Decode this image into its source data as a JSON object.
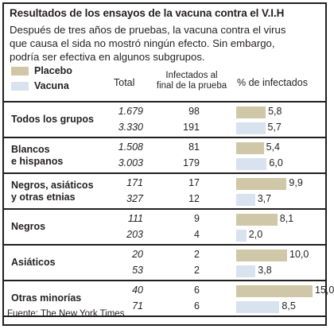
{
  "title": "Resultados de los ensayos de la vacuna contra el V.I.H",
  "subtitle_lines": [
    "Después de tres años de pruebas, la vacuna contra el virus",
    "que causa el sida no mostró ningún efecto. Sin embargo,",
    "podría ser efectiva en algunos subgrupos."
  ],
  "legend": [
    {
      "name": "Placebo",
      "color": "#cfc7a7"
    },
    {
      "name": "Vacuna",
      "color": "#d9e2ef"
    }
  ],
  "columns": {
    "total": "Total",
    "infected_line1": "Infectados al",
    "infected_line2": "final de la prueba",
    "percent": "% de infectados"
  },
  "source": "Fuente: The New York Times",
  "chart_data": {
    "type": "bar",
    "title": "Resultados de los ensayos de la vacuna contra el V.I.H",
    "series_names": [
      "Placebo",
      "Vacuna"
    ],
    "groups": [
      {
        "label_lines": [
          "Todos los grupos"
        ],
        "rows": [
          {
            "series": "Placebo",
            "total": "1.679",
            "infected": "98",
            "percent": 5.8,
            "percent_label": "5,8"
          },
          {
            "series": "Vacuna",
            "total": "3.330",
            "infected": "191",
            "percent": 5.7,
            "percent_label": "5,7"
          }
        ]
      },
      {
        "label_lines": [
          "Blancos",
          "e hispanos"
        ],
        "rows": [
          {
            "series": "Placebo",
            "total": "1.508",
            "infected": "81",
            "percent": 5.4,
            "percent_label": "5,4"
          },
          {
            "series": "Vacuna",
            "total": "3.003",
            "infected": "179",
            "percent": 6.0,
            "percent_label": "6,0"
          }
        ]
      },
      {
        "label_lines": [
          "Negros, asiáticos",
          "y otras etnias"
        ],
        "rows": [
          {
            "series": "Placebo",
            "total": "171",
            "infected": "17",
            "percent": 9.9,
            "percent_label": "9,9"
          },
          {
            "series": "Vacuna",
            "total": "327",
            "infected": "12",
            "percent": 3.7,
            "percent_label": "3,7"
          }
        ]
      },
      {
        "label_lines": [
          "Negros"
        ],
        "rows": [
          {
            "series": "Placebo",
            "total": "111",
            "infected": "9",
            "percent": 8.1,
            "percent_label": "8,1"
          },
          {
            "series": "Vacuna",
            "total": "203",
            "infected": "4",
            "percent": 2.0,
            "percent_label": "2,0"
          }
        ]
      },
      {
        "label_lines": [
          "Asiáticos"
        ],
        "rows": [
          {
            "series": "Placebo",
            "total": "20",
            "infected": "2",
            "percent": 10.0,
            "percent_label": "10,0"
          },
          {
            "series": "Vacuna",
            "total": "53",
            "infected": "2",
            "percent": 3.8,
            "percent_label": "3,8"
          }
        ]
      },
      {
        "label_lines": [
          "Otras minorías"
        ],
        "rows": [
          {
            "series": "Placebo",
            "total": "40",
            "infected": "6",
            "percent": 15.0,
            "percent_label": "15,0"
          },
          {
            "series": "Vacuna",
            "total": "71",
            "infected": "6",
            "percent": 8.5,
            "percent_label": "8,5"
          }
        ]
      }
    ],
    "xlim": [
      0,
      15
    ],
    "grid": false
  }
}
